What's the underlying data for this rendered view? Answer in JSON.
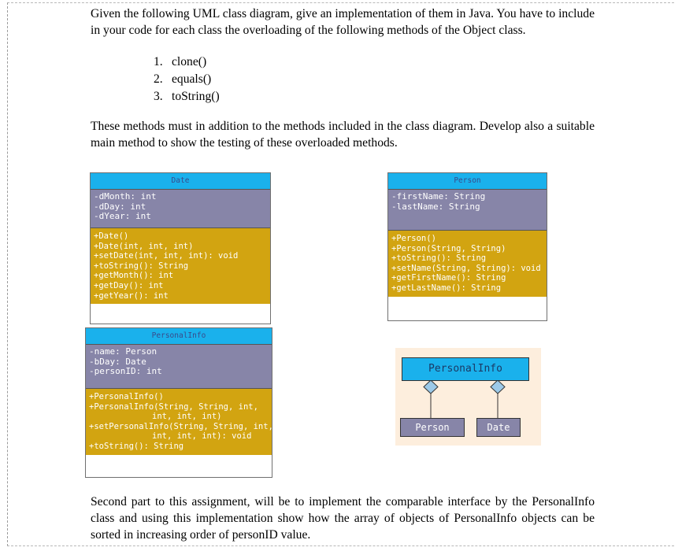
{
  "intro": {
    "paragraph": "Given the following UML class diagram, give an implementation of them in Java. You have to include in your code for each class the overloading of the following methods of the Object class.",
    "methods": [
      {
        "num": "1.",
        "text": "clone()"
      },
      {
        "num": "2.",
        "text": "equals()"
      },
      {
        "num": "3.",
        "text": "toString()"
      }
    ]
  },
  "requirement": "These methods must in addition to the methods included in the class diagram. Develop also a suitable main method to show the testing of these overloaded methods.",
  "uml": {
    "date": {
      "title": "Date",
      "attributes": [
        "-dMonth: int",
        "-dDay: int",
        "-dYear: int"
      ],
      "methods": [
        "+Date()",
        "+Date(int, int, int)",
        "+setDate(int, int, int): void",
        "+toString(): String",
        "+getMonth(): int",
        "+getDay(): int",
        "+getYear(): int"
      ]
    },
    "person": {
      "title": "Person",
      "attributes": [
        "-firstName: String",
        "-lastName: String"
      ],
      "methods": [
        "+Person()",
        "+Person(String, String)",
        "+toString(): String",
        "+setName(String, String): void",
        "+getFirstName(): String",
        "+getLastName(): String"
      ]
    },
    "personal_info": {
      "title": "PersonalInfo",
      "attributes": [
        "-name: Person",
        "-bDay: Date",
        "-personID: int"
      ],
      "methods": [
        "+PersonalInfo()",
        "+PersonalInfo(String, String, int,",
        "int, int, int)",
        "+setPersonalInfo(String, String, int,",
        "int, int, int): void",
        "+toString(): String"
      ]
    },
    "association": {
      "whole": "PersonalInfo",
      "parts": [
        "Person",
        "Date"
      ]
    }
  },
  "second_part": "Second part to this assignment, will be to implement the comparable interface by the PersonalInfo class and using this implementation show how the array of objects of PersonalInfo objects can be sorted in increasing order of personID value.",
  "colors": {
    "title_bar": "#1ab1ec",
    "attributes_bg": "#8785a8",
    "methods_bg": "#d2a411",
    "association_bg": "#fdeedd"
  }
}
